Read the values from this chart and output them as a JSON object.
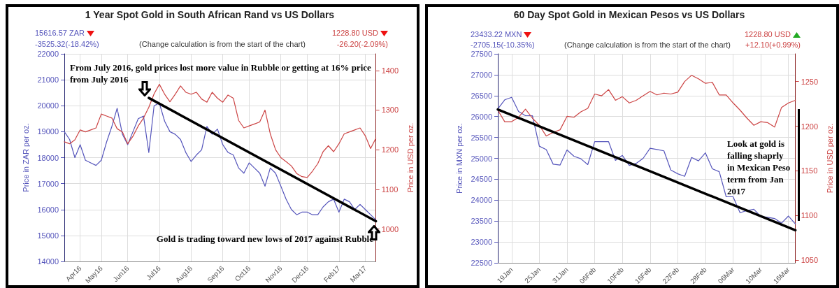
{
  "chart_data": [
    {
      "type": "line",
      "title": "1 Year Spot Gold in South African Rand vs US Dollars",
      "ylabel": "Price in ZAR per oz.",
      "y2label": "Price in USD per oz.",
      "annotations": [
        "15616.57 ZAR",
        "-3525.32(-18.42%)",
        "(Change calculation is from the start of the chart)",
        "1228.80 USD",
        "-26.20(-2.09%)",
        "From July 2016, gold prices lost more value in Rubble or getting at 16% price from July 2016",
        "Gold is trading toward new lows of 2017 against Rubble"
      ],
      "categories": [
        null,
        null,
        null,
        "Apr16",
        null,
        null,
        null,
        "May16",
        null,
        null,
        null,
        null,
        "Jun16",
        null,
        null,
        null,
        null,
        null,
        "Jul16",
        null,
        null,
        null,
        null,
        null,
        "Aug16",
        null,
        null,
        null,
        null,
        null,
        "Sep16",
        null,
        null,
        null,
        null,
        "Oct16",
        null,
        null,
        null,
        null,
        null,
        "Nov16",
        null,
        null,
        null,
        null,
        "Dec16",
        null,
        null,
        null,
        null,
        null,
        "Feb17",
        null,
        null,
        null,
        null,
        "Mar17",
        null,
        null
      ],
      "ylim": [
        14000,
        22000
      ],
      "yticks": [
        14000,
        15000,
        16000,
        17000,
        18000,
        19000,
        20000,
        21000,
        22000
      ],
      "y2lim": [
        918,
        1442
      ],
      "y2ticks": [
        1000,
        1100,
        1200,
        1300,
        1400
      ],
      "grid": true,
      "marker": "none",
      "line_style": "solid",
      "series": [
        {
          "color": "#5555bb",
          "values": [
            19000,
            18700,
            18000,
            18500,
            17900,
            17800,
            17700,
            17900,
            18600,
            19200,
            19900,
            18900,
            18500,
            19000,
            19500,
            19600,
            18200,
            20000,
            20100,
            19400,
            19000,
            18900,
            18700,
            18200,
            17850,
            18100,
            18300,
            19200,
            18900,
            19100,
            18500,
            18200,
            18100,
            17600,
            17400,
            17800,
            17600,
            17400,
            16900,
            17600,
            17400,
            16900,
            16400,
            16000,
            15800,
            15900,
            15900,
            15800,
            15800,
            16100,
            16300,
            16400,
            15900,
            16400,
            16300,
            16000,
            16200,
            16000,
            15800,
            15600
          ]
        },
        {
          "color": "#cc4444",
          "axis": "y2",
          "values": [
            1220,
            1215,
            1225,
            1250,
            1245,
            1250,
            1255,
            1290,
            1285,
            1280,
            1253,
            1245,
            1215,
            1234,
            1260,
            1280,
            1307,
            1341,
            1365,
            1340,
            1321,
            1340,
            1361,
            1345,
            1340,
            1345,
            1328,
            1320,
            1345,
            1330,
            1320,
            1338,
            1330,
            1274,
            1255,
            1260,
            1265,
            1270,
            1300,
            1240,
            1200,
            1180,
            1170,
            1159,
            1140,
            1132,
            1130,
            1146,
            1165,
            1195,
            1210,
            1195,
            1215,
            1240,
            1245,
            1250,
            1255,
            1235,
            1203,
            1229
          ]
        },
        {
          "color": "#000000",
          "values": [
            null,
            null,
            null,
            null,
            null,
            null,
            null,
            null,
            null,
            null,
            null,
            null,
            null,
            null,
            null,
            null,
            20300,
            null,
            null,
            null,
            null,
            null,
            null,
            null,
            null,
            null,
            null,
            null,
            null,
            null,
            null,
            null,
            null,
            null,
            null,
            null,
            null,
            null,
            null,
            null,
            null,
            null,
            null,
            null,
            null,
            null,
            null,
            null,
            null,
            null,
            null,
            null,
            null,
            null,
            null,
            null,
            null,
            null,
            null,
            15550
          ]
        }
      ]
    },
    {
      "type": "line",
      "title": "60 Day Spot Gold in Mexican Pesos vs US Dollars",
      "ylabel": "Price in MXN per oz.",
      "y2label": "Price in USD per oz.",
      "annotations": [
        "23433.22 MXN",
        "-2705.15(-10.35%)",
        "(Change calculation is from the start of the chart)",
        "1228.80 USD",
        "+12.10(+0.99%)",
        "Look at gold is falling shaprly in Mexican Peso term from Jan 2017"
      ],
      "categories": [
        null,
        null,
        "19Jan",
        null,
        null,
        null,
        "25Jan",
        null,
        null,
        null,
        "31Jan",
        null,
        null,
        null,
        "06Feb",
        null,
        null,
        null,
        "10Feb",
        null,
        null,
        null,
        "16Feb",
        null,
        null,
        null,
        "22Feb",
        null,
        null,
        null,
        "28Feb",
        null,
        null,
        null,
        "06Mar",
        null,
        null,
        null,
        "10Mar",
        null,
        null,
        null,
        "16Mar",
        null
      ],
      "ylim": [
        22500,
        27500
      ],
      "yticks": [
        22500,
        23000,
        23500,
        24000,
        24500,
        25000,
        25500,
        26000,
        26500,
        27000,
        27500
      ],
      "y2lim": [
        1047,
        1281
      ],
      "y2ticks": [
        1050,
        1100,
        1150,
        1200,
        1250
      ],
      "grid": true,
      "marker": "none",
      "line_style": "solid",
      "series": [
        {
          "color": "#5555bb",
          "values": [
            26180,
            26400,
            26460,
            26120,
            26020,
            26020,
            25290,
            25210,
            24860,
            24840,
            25200,
            25050,
            24990,
            24850,
            25400,
            25400,
            25400,
            24950,
            25070,
            24830,
            24880,
            25000,
            25240,
            25210,
            25180,
            24720,
            24630,
            24570,
            25020,
            24940,
            25130,
            24750,
            24680,
            24080,
            24080,
            23700,
            23750,
            23780,
            23610,
            23590,
            23560,
            23450,
            23620,
            23430
          ]
        },
        {
          "color": "#cc4444",
          "axis": "y2",
          "values": [
            1218,
            1205,
            1205,
            1210,
            1219,
            1209,
            1201,
            1189,
            1193,
            1196,
            1211,
            1210,
            1216,
            1220,
            1236,
            1234,
            1241,
            1229,
            1233,
            1226,
            1229,
            1234,
            1239,
            1235,
            1237,
            1236,
            1238,
            1250,
            1257,
            1253,
            1248,
            1249,
            1235,
            1235,
            1226,
            1218,
            1209,
            1201,
            1205,
            1204,
            1199,
            1221,
            1226,
            1229
          ]
        },
        {
          "color": "#000000",
          "values": [
            26170,
            null,
            null,
            null,
            null,
            null,
            null,
            null,
            null,
            null,
            null,
            null,
            null,
            null,
            null,
            null,
            null,
            null,
            null,
            null,
            null,
            null,
            null,
            null,
            null,
            null,
            null,
            null,
            null,
            null,
            null,
            null,
            null,
            null,
            null,
            null,
            null,
            null,
            null,
            null,
            null,
            null,
            null,
            23280
          ]
        }
      ]
    }
  ]
}
